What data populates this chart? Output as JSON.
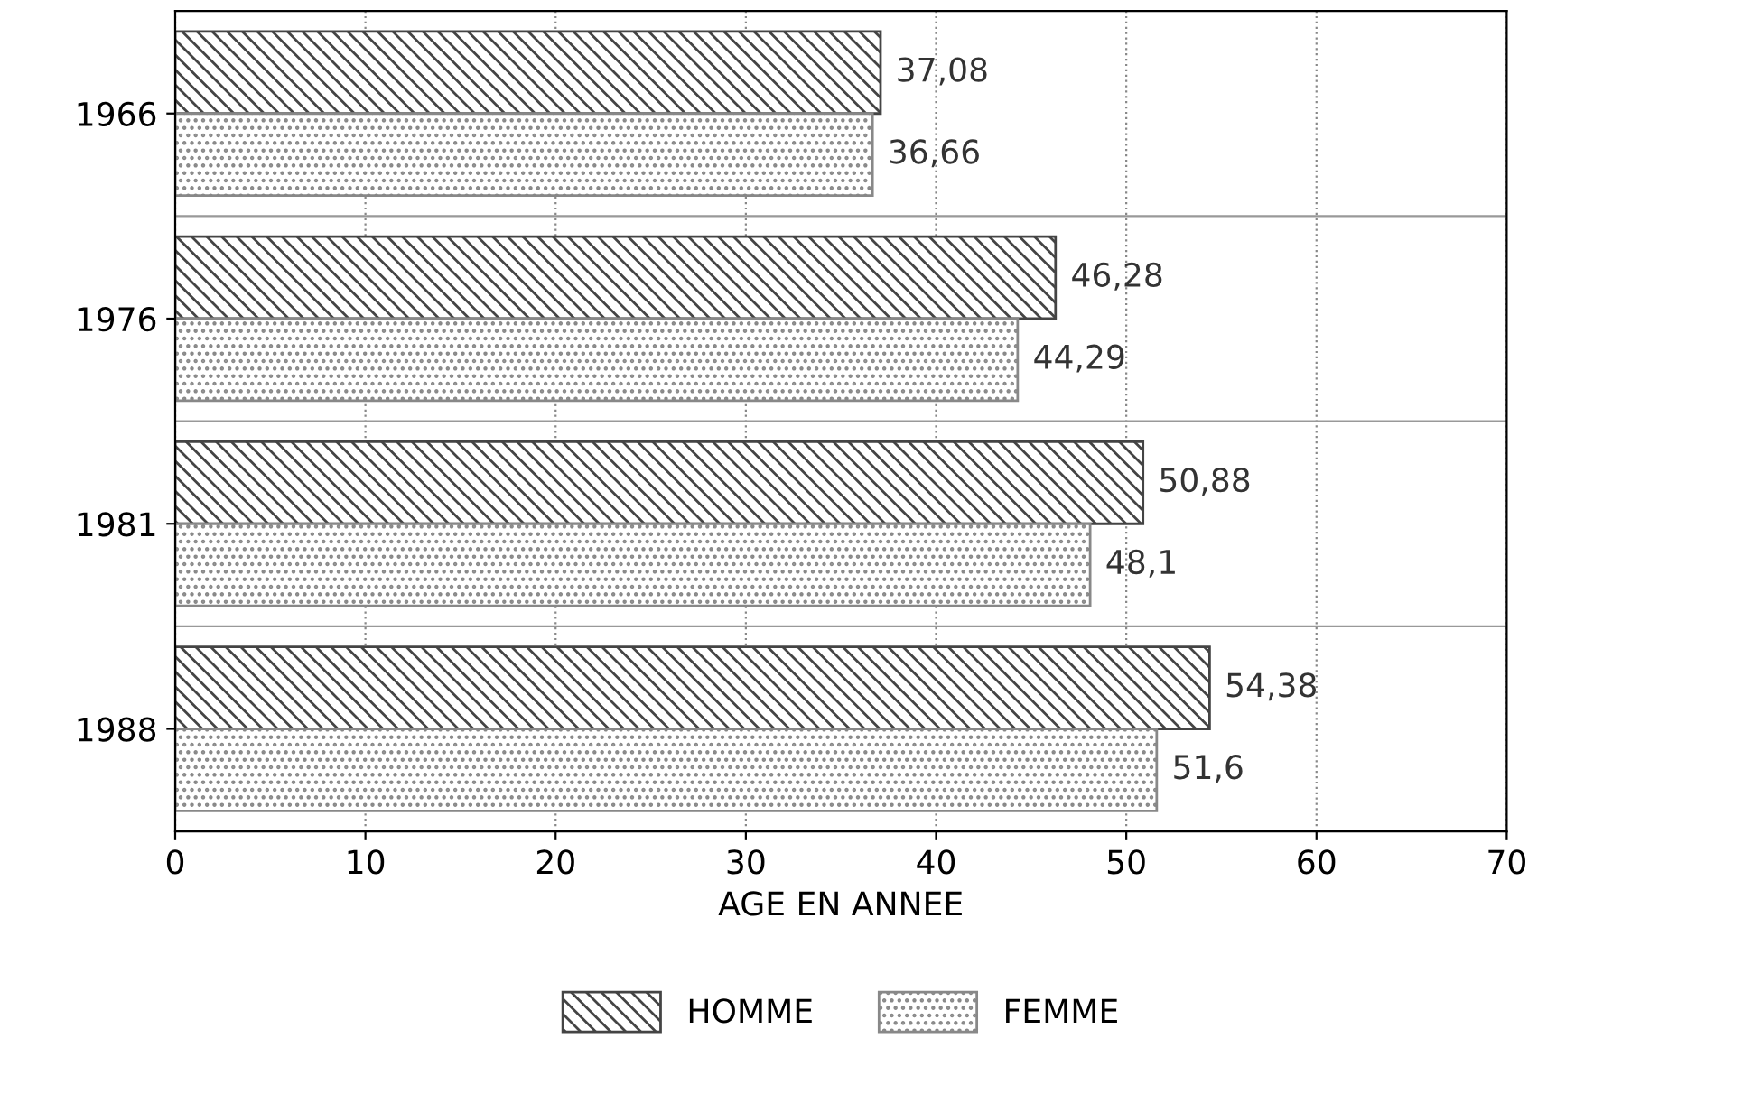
{
  "chart_data": {
    "type": "bar",
    "orientation": "horizontal",
    "xlabel": "AGE EN ANNEE",
    "categories": [
      "1966",
      "1976",
      "1981",
      "1988"
    ],
    "series": [
      {
        "name": "HOMME",
        "color": "#444444",
        "values": [
          37.08,
          46.28,
          50.88,
          54.38
        ],
        "value_labels": [
          "37,08",
          "46,28",
          "50,88",
          "54,38"
        ]
      },
      {
        "name": "FEMME",
        "color": "#888888",
        "values": [
          36.66,
          44.29,
          48.1,
          51.6
        ],
        "value_labels": [
          "36,66",
          "44,29",
          "48,1",
          "51,6"
        ]
      }
    ],
    "xlim": [
      0,
      70
    ],
    "xticks": [
      0,
      10,
      20,
      30,
      40,
      50,
      60,
      70
    ],
    "grid": "x",
    "legend": "bottom"
  }
}
